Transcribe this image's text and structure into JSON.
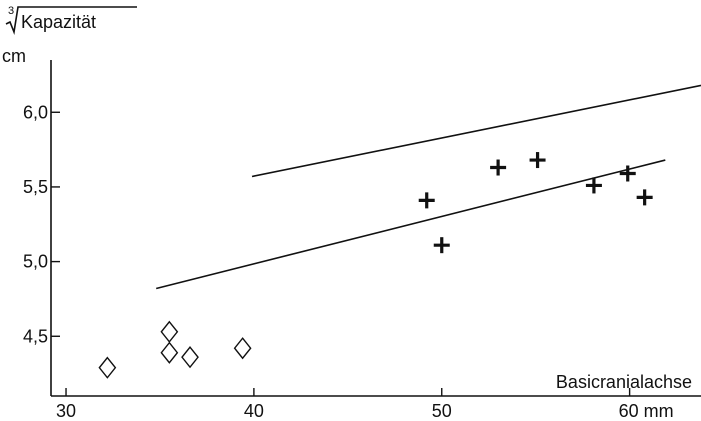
{
  "chart_data": {
    "type": "scatter",
    "ylabel": {
      "root_index": "3",
      "title": "Kapazität",
      "unit": "cm"
    },
    "xlabel": "Basicranialachse",
    "x_ticks": [
      {
        "value": 30,
        "label": "30"
      },
      {
        "value": 40,
        "label": "40"
      },
      {
        "value": 50,
        "label": "50"
      },
      {
        "value": 60,
        "label": "60 mm"
      }
    ],
    "y_ticks": [
      {
        "value": 4.5,
        "label": "4,5"
      },
      {
        "value": 5.0,
        "label": "5,0"
      },
      {
        "value": 5.5,
        "label": "5,5"
      },
      {
        "value": 6.0,
        "label": "6,0"
      }
    ],
    "xlim": [
      29.2,
      63.8
    ],
    "ylim": [
      4.1,
      6.35
    ],
    "series": [
      {
        "marker": "diamond",
        "points": [
          {
            "x": 32.2,
            "y": 4.29
          },
          {
            "x": 35.5,
            "y": 4.53
          },
          {
            "x": 35.5,
            "y": 4.39
          },
          {
            "x": 36.6,
            "y": 4.36
          },
          {
            "x": 39.4,
            "y": 4.42
          }
        ]
      },
      {
        "marker": "cross",
        "points": [
          {
            "x": 49.2,
            "y": 5.41
          },
          {
            "x": 50.0,
            "y": 5.11
          },
          {
            "x": 53.0,
            "y": 5.63
          },
          {
            "x": 55.1,
            "y": 5.68
          },
          {
            "x": 58.1,
            "y": 5.51
          },
          {
            "x": 59.9,
            "y": 5.59
          },
          {
            "x": 60.8,
            "y": 5.43
          }
        ]
      }
    ],
    "lines": [
      {
        "x1": 34.8,
        "y1": 4.82,
        "x2": 61.9,
        "y2": 5.68
      },
      {
        "x1": 39.9,
        "y1": 5.57,
        "x2": 63.8,
        "y2": 6.18
      }
    ],
    "grid": false,
    "legend": "none"
  }
}
